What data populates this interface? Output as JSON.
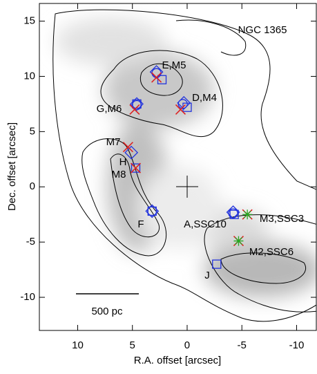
{
  "chart_data": {
    "type": "scatter",
    "xlabel": "R.A. offset [arcsec]",
    "ylabel": "Dec. offset [arcsec]",
    "xlim": [
      13.5,
      -11.8
    ],
    "ylim": [
      -13,
      16.6
    ],
    "xticks": [
      10,
      5,
      0,
      -5,
      -10
    ],
    "yticks": [
      15,
      10,
      5,
      0,
      -5,
      -10
    ],
    "annotations": [
      "NGC 1365",
      "E,M5",
      "D,M4",
      "G,M6",
      "M7",
      "H",
      "M8",
      "F",
      "A,SSC10",
      "M3,SSC3",
      "M2,SSC6",
      "J",
      "500 pc"
    ],
    "series": [
      {
        "marker": "circle",
        "color": "#2233dd",
        "x": [
          2.8,
          0.4,
          4.6,
          3.2,
          -4.2
        ],
        "values": [
          10.3,
          7.5,
          7.4,
          -2.2,
          -2.4
        ]
      },
      {
        "marker": "diamond",
        "color": "#2233dd",
        "x": [
          2.8,
          0.3,
          4.6,
          5.1,
          3.2,
          -4.2
        ],
        "values": [
          10.4,
          7.6,
          7.5,
          3.1,
          -2.2,
          -2.3
        ]
      },
      {
        "marker": "square",
        "color": "#2233dd",
        "x": [
          2.3,
          0,
          4.6,
          4.7,
          3.2,
          -4.3,
          -2.7
        ],
        "values": [
          9.7,
          7.2,
          7.5,
          1.7,
          -2.2,
          -2.5,
          -7.0
        ]
      },
      {
        "marker": "x",
        "color": "#dd2222",
        "x": [
          2.8,
          0.6,
          4.8,
          5.4,
          4.7,
          -5.5,
          -4.7
        ],
        "values": [
          9.9,
          7.0,
          7.0,
          3.6,
          1.7,
          -2.5,
          -4.9
        ]
      },
      {
        "marker": "asterisk",
        "color": "#22aa22",
        "x": [
          -5.5,
          -4.7
        ],
        "values": [
          -2.5,
          -4.9
        ]
      }
    ]
  }
}
